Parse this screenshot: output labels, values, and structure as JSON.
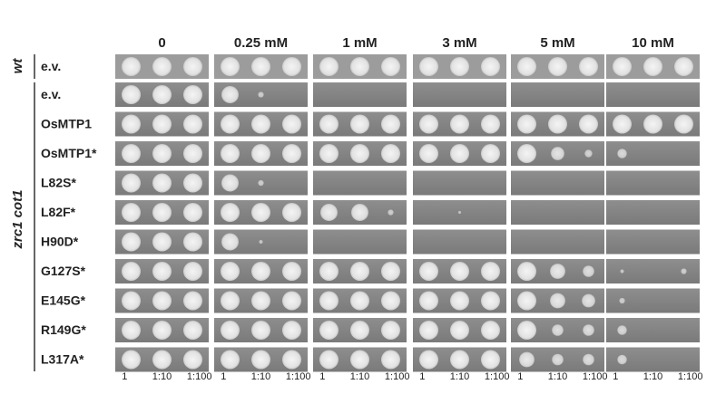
{
  "wt_label": "wt",
  "mutant_label": "zrc1 cot1",
  "concentrations": [
    "0",
    "0.25 mM",
    "1 mM",
    "3 mM",
    "5 mM",
    "10 mM"
  ],
  "wt_rows": [
    "e.v."
  ],
  "mutant_rows": [
    "e.v.",
    "OsMTP1",
    "OsMTP1*",
    "L82S*",
    "L82F*",
    "H90D*",
    "G127S*",
    "E145G*",
    "R149G*",
    "L317A*"
  ],
  "dilutions": [
    "1",
    "1:10",
    "1:100"
  ]
}
